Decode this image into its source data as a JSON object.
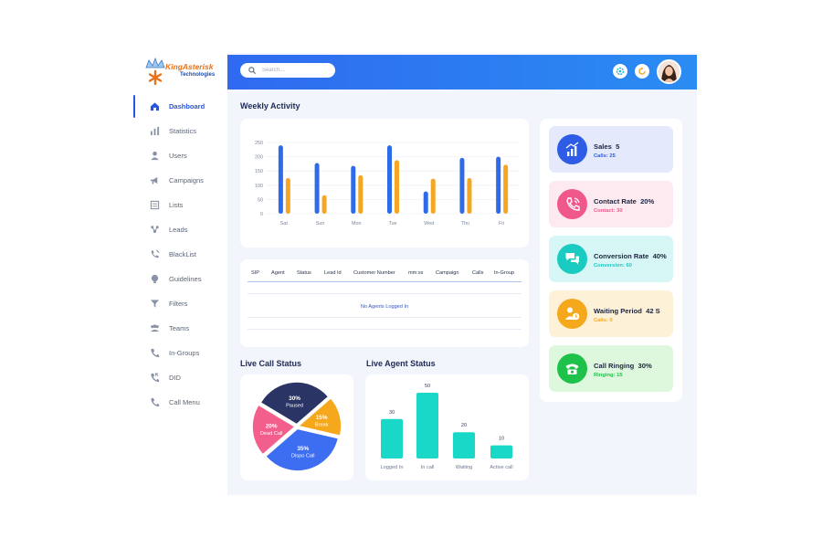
{
  "brand": {
    "name": "KingAsterisk",
    "sub": "Technologies"
  },
  "sidebar": {
    "items": [
      {
        "label": "Dashboard",
        "icon": "home-icon"
      },
      {
        "label": "Statistics",
        "icon": "bar-chart-icon"
      },
      {
        "label": "Users",
        "icon": "user-icon"
      },
      {
        "label": "Campaigns",
        "icon": "megaphone-icon"
      },
      {
        "label": "Lists",
        "icon": "list-icon"
      },
      {
        "label": "Leads",
        "icon": "leads-icon"
      },
      {
        "label": "BlackList",
        "icon": "phone-block-icon"
      },
      {
        "label": "Guidelines",
        "icon": "guidelines-icon"
      },
      {
        "label": "Filters",
        "icon": "filter-icon"
      },
      {
        "label": "Teams",
        "icon": "team-icon"
      },
      {
        "label": "In-Groups",
        "icon": "phone-icon"
      },
      {
        "label": "DID",
        "icon": "phone-incoming-icon"
      },
      {
        "label": "Call Menu",
        "icon": "phone-icon"
      }
    ]
  },
  "header": {
    "search_placeholder": "Search....",
    "icons": [
      "settings-icon",
      "refresh-icon"
    ]
  },
  "weekly": {
    "title": "Weekly Activity"
  },
  "chart_data": {
    "type": "bar",
    "categories": [
      "Sat",
      "Sun",
      "Mon",
      "Tue",
      "Wed",
      "Thu",
      "Fri"
    ],
    "series": [
      {
        "values": [
          240,
          178,
          168,
          240,
          78,
          196,
          200
        ],
        "color": "#2f6ae8"
      },
      {
        "values": [
          125,
          65,
          135,
          188,
          123,
          125,
          172
        ],
        "color": "#f5a623"
      }
    ],
    "yticks": [
      0,
      50,
      100,
      150,
      200,
      250
    ],
    "ylim": [
      0,
      250
    ],
    "grid": true
  },
  "table": {
    "columns": [
      "SIP",
      "Agent",
      "Status",
      "Lead Id",
      "Customer Number",
      "mm:ss",
      "Campaign",
      "Calls",
      "In-Group"
    ],
    "empty_text": "No Agents Logged In"
  },
  "live_call": {
    "title": "Live Call Status",
    "slices": [
      {
        "pct": "30%",
        "label": "Paused",
        "value": 30,
        "color": "#2a3566",
        "text_color": "#ffffff"
      },
      {
        "pct": "15%",
        "label": "Break",
        "value": 15,
        "color": "#f6a81c",
        "text_color": "#ffffff"
      },
      {
        "pct": "35%",
        "label": "Dispo Call",
        "value": 35,
        "color": "#3d6df0",
        "text_color": "#ffffff"
      },
      {
        "pct": "20%",
        "label": "Dead Call",
        "value": 20,
        "color": "#f25f8c",
        "text_color": "#ffffff"
      }
    ]
  },
  "live_agent": {
    "title": "Live Agent Status",
    "bars": [
      {
        "label": "Logged In",
        "value": 30
      },
      {
        "label": "In call",
        "value": 50
      },
      {
        "label": "Waiting",
        "value": 20
      },
      {
        "label": "Active call",
        "value": 10
      }
    ],
    "color": "#1ad8c8"
  },
  "stats": [
    {
      "title": "Sales",
      "value": "5",
      "sub_label": "Calls:",
      "sub_value": "25",
      "bg": "#e4e9fb",
      "circle": "#2e5ce6",
      "sub_color": "#2e5ce6",
      "icon": "chart-up-icon"
    },
    {
      "title": "Contact Rate",
      "value": "20%",
      "sub_label": "Contact:",
      "sub_value": "30",
      "bg": "#fdeaf0",
      "circle": "#f0578a",
      "sub_color": "#f0578a",
      "icon": "phone-ring-icon"
    },
    {
      "title": "Conversion Rate",
      "value": "40%",
      "sub_label": "Conversion:",
      "sub_value": "60",
      "bg": "#d7f7f6",
      "circle": "#19cbc1",
      "sub_color": "#19cbc1",
      "icon": "chat-icon"
    },
    {
      "title": "Waiting Period",
      "value": "42 S",
      "sub_label": "Calls:",
      "sub_value": "0",
      "bg": "#fdf1d8",
      "circle": "#f6a81c",
      "sub_color": "#f6a81c",
      "icon": "user-clock-icon"
    },
    {
      "title": "Call Ringing",
      "value": "30%",
      "sub_label": "Ringing:",
      "sub_value": "15",
      "bg": "#def8de",
      "circle": "#1ec24a",
      "sub_color": "#1ec24a",
      "icon": "telephone-icon"
    }
  ]
}
